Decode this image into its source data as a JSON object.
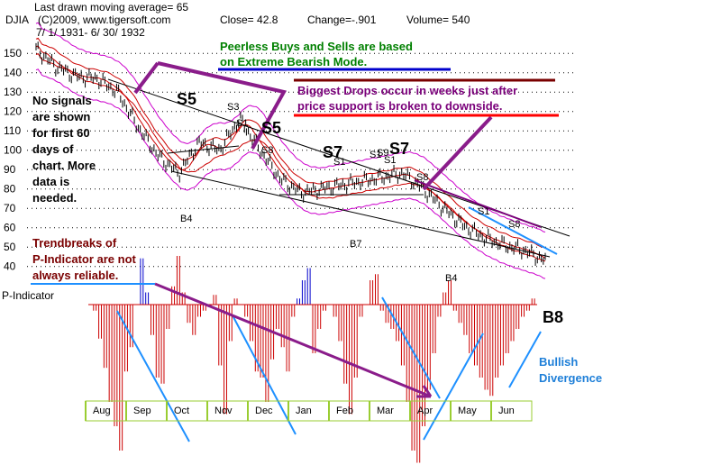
{
  "header": {
    "moving_average": "Last drawn moving average= 65",
    "symbol": "DJIA",
    "copyright": "(C)2009, www.tigersoft.com",
    "date_range": "7/ 1/ 1931- 6/ 30/ 1932",
    "close": "Close= 42.8",
    "change": "Change=-.901",
    "volume": "Volume= 540"
  },
  "notes": {
    "peerless_line1": "Peerless Buys and Sells are based",
    "peerless_line2": "on Extreme Bearish Mode.",
    "drops_line1": "Biggest Drops occur in weeks just after",
    "drops_line2": "price support is broken to downside.",
    "nosig_line1": "No signals",
    "nosig_line2": "are shown",
    "nosig_line3": "for first 60",
    "nosig_line4": "days of",
    "nosig_line5": "chart.  More",
    "nosig_line6": "data is",
    "nosig_line7": "needed.",
    "trend_line1": "Trendbreaks of",
    "trend_line2": "P-Indicator are not",
    "trend_line3": "always reliable.",
    "bullish_line1": "Bullish",
    "bullish_line2": "Divergence",
    "indicator_label": "P-Indicator",
    "b8_big": "B8"
  },
  "signals": [
    {
      "label": "S5",
      "size": "big"
    },
    {
      "label": "S5",
      "size": "big"
    },
    {
      "label": "S7",
      "size": "big"
    },
    {
      "label": "S7",
      "size": "big"
    },
    {
      "label": "S3",
      "size": "small"
    },
    {
      "label": "S1",
      "size": "small"
    },
    {
      "label": "S8",
      "size": "small"
    },
    {
      "label": "S1",
      "size": "small"
    },
    {
      "label": "S1",
      "size": "small"
    },
    {
      "label": "S9",
      "size": "small"
    },
    {
      "label": "S1",
      "size": "small"
    },
    {
      "label": "S8",
      "size": "small"
    },
    {
      "label": "S1",
      "size": "small"
    },
    {
      "label": "S8",
      "size": "small"
    },
    {
      "label": "B4",
      "size": "small"
    },
    {
      "label": "B7",
      "size": "small"
    },
    {
      "label": "B4",
      "size": "small"
    }
  ],
  "colors": {
    "price": "#000000",
    "band": "#cc00cc",
    "ma_red": "#cc0000",
    "annotation": "#8a1c8a",
    "trendline": "#1e90ff",
    "indicator_red": "#cc0000",
    "indicator_blue": "#0000cc",
    "underline_blue": "#0000cc",
    "underline_red": "#ff0000",
    "month_bar": "#9acd32"
  },
  "chart_data": {
    "type": "line",
    "title": "DJIA",
    "subtitle": "7/ 1/ 1931- 6/ 30/ 1932",
    "y_ticks": [
      150,
      140,
      130,
      120,
      110,
      100,
      90,
      80,
      70,
      60,
      50,
      40
    ],
    "ylim": [
      38,
      158
    ],
    "months": [
      "Aug",
      "Sep",
      "Oct",
      "Nov",
      "Dec",
      "Jan",
      "Feb",
      "Mar",
      "Apr",
      "May",
      "Jun"
    ],
    "grid": true,
    "series": [
      {
        "name": "DJIA",
        "x": [
          "Jul",
          "Jul",
          "Aug",
          "Aug",
          "Sep",
          "Sep",
          "Sep",
          "Oct",
          "Oct",
          "Oct",
          "Nov",
          "Nov",
          "Dec",
          "Dec",
          "Jan",
          "Jan",
          "Feb",
          "Feb",
          "Mar",
          "Mar",
          "Apr",
          "Apr",
          "May",
          "May",
          "Jun",
          "Jun"
        ],
        "values": [
          152,
          143,
          138,
          137,
          130,
          112,
          97,
          88,
          104,
          100,
          116,
          100,
          85,
          78,
          80,
          82,
          84,
          86,
          88,
          80,
          70,
          61,
          55,
          51,
          48,
          43
        ]
      }
    ],
    "indicator": {
      "name": "P-Indicator",
      "values": [
        0,
        -5,
        -28,
        -52,
        -80,
        -100,
        -120,
        -55,
        -35,
        0,
        38,
        10,
        -25,
        -60,
        -65,
        -20,
        15,
        40,
        10,
        -15,
        -25,
        -10,
        -5,
        -2,
        8,
        -50,
        -90,
        -30,
        5,
        0,
        -10,
        -30,
        -55,
        -60,
        -80,
        -45,
        -20,
        -35,
        -55,
        -10,
        5,
        20,
        30,
        -40,
        -20,
        -5,
        0,
        -10,
        -30,
        -65,
        -90,
        -60,
        -10,
        0,
        20,
        25,
        -5,
        -15,
        -20,
        -30,
        -50,
        -80,
        -120,
        -130,
        -100,
        -70,
        -40,
        -10,
        10,
        20,
        -5,
        -15,
        -25,
        -40,
        -50,
        -60,
        -70,
        -75,
        -60,
        -50,
        -40,
        -30,
        -20,
        -10,
        -5,
        5
      ]
    }
  }
}
